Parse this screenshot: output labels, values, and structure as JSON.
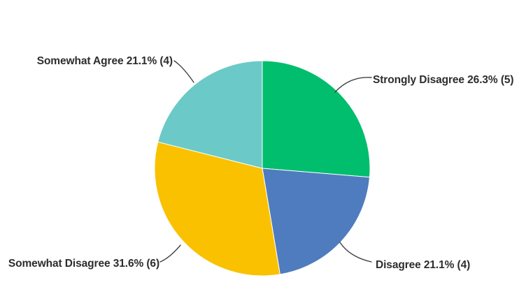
{
  "chart_data": {
    "type": "pie",
    "title": "",
    "direction": "clockwise",
    "start_angle_deg": 0,
    "legend_position": "callout-labels",
    "background_color": "#ffffff",
    "style": {
      "leader_line_color": "#404040",
      "label_text_color": "#2d2d2d",
      "slice_separator_color": "#ffffff"
    },
    "slices": [
      {
        "label": "Strongly Disagree",
        "percent": 26.3,
        "count": 5,
        "color": "#00be6d",
        "display": "Strongly Disagree 26.3% (5)"
      },
      {
        "label": "Disagree",
        "percent": 21.1,
        "count": 4,
        "color": "#4f7cbe",
        "display": "Disagree 21.1% (4)"
      },
      {
        "label": "Somewhat Disagree",
        "percent": 31.6,
        "count": 6,
        "color": "#fac100",
        "display": "Somewhat Disagree 31.6% (6)"
      },
      {
        "label": "Somewhat Agree",
        "percent": 21.1,
        "count": 4,
        "color": "#6bc9c8",
        "display": "Somewhat Agree 21.1% (4)"
      }
    ]
  }
}
